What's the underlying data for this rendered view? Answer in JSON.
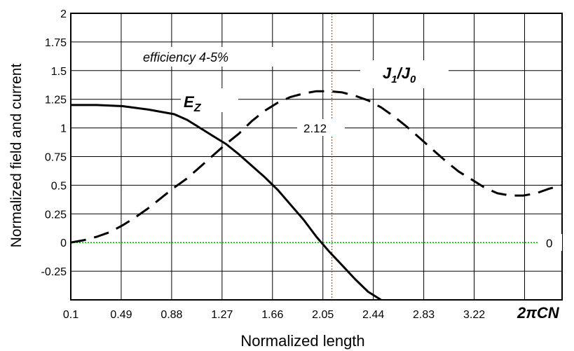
{
  "chart_data": {
    "type": "line",
    "xlabel": "Normalized length",
    "x_axis_symbol": "2πCN",
    "ylabel": "Normalized field and current",
    "xlim": [
      0.1,
      3.9
    ],
    "ylim": [
      -0.5,
      2.0
    ],
    "x_ticks": [
      0.1,
      0.49,
      0.88,
      1.27,
      1.66,
      2.05,
      2.44,
      2.83,
      3.22
    ],
    "x_tick_labels": [
      "0.1",
      "0.49",
      "0.88",
      "1.27",
      "1.66",
      "2.05",
      "2.44",
      "2.83",
      "3.22"
    ],
    "y_ticks": [
      -0.25,
      0,
      0.25,
      0.5,
      0.75,
      1,
      1.25,
      1.5,
      1.75,
      2
    ],
    "y_tick_labels": [
      "-0.25",
      "0",
      "0.25",
      "0.5",
      "0.75",
      "1",
      "1.25",
      "1.5",
      "1.75",
      "2"
    ],
    "grid": true,
    "series": [
      {
        "name": "E_Z",
        "style": "solid",
        "color": "#000000",
        "x": [
          0.1,
          0.3,
          0.5,
          0.7,
          0.9,
          1.0,
          1.1,
          1.2,
          1.3,
          1.4,
          1.5,
          1.6,
          1.7,
          1.8,
          1.9,
          2.0,
          2.1,
          2.2,
          2.3,
          2.4,
          2.5
        ],
        "y": [
          1.2,
          1.2,
          1.19,
          1.16,
          1.12,
          1.07,
          1.0,
          0.93,
          0.86,
          0.77,
          0.67,
          0.57,
          0.46,
          0.33,
          0.2,
          0.05,
          -0.08,
          -0.2,
          -0.32,
          -0.43,
          -0.5
        ]
      },
      {
        "name": "J_1/J_0",
        "style": "dashed",
        "color": "#000000",
        "x": [
          0.1,
          0.2,
          0.3,
          0.4,
          0.5,
          0.6,
          0.7,
          0.8,
          0.9,
          1.0,
          1.1,
          1.2,
          1.3,
          1.4,
          1.5,
          1.6,
          1.7,
          1.8,
          1.9,
          2.0,
          2.1,
          2.2,
          2.3,
          2.4,
          2.5,
          2.6,
          2.7,
          2.8,
          2.9,
          3.0,
          3.1,
          3.2,
          3.3,
          3.4,
          3.5,
          3.6,
          3.7,
          3.8,
          3.9
        ],
        "y": [
          0.0,
          0.02,
          0.05,
          0.09,
          0.15,
          0.22,
          0.3,
          0.39,
          0.48,
          0.56,
          0.66,
          0.76,
          0.86,
          0.95,
          1.06,
          1.15,
          1.22,
          1.27,
          1.3,
          1.32,
          1.32,
          1.31,
          1.28,
          1.24,
          1.18,
          1.1,
          1.01,
          0.91,
          0.81,
          0.71,
          0.62,
          0.55,
          0.48,
          0.43,
          0.41,
          0.41,
          0.43,
          0.47,
          0.5
        ]
      }
    ],
    "reference_lines": [
      {
        "orientation": "vertical",
        "value": 2.12,
        "label": "2.12",
        "color": "#ff0000",
        "style": "dotted"
      },
      {
        "orientation": "horizontal",
        "value": 0,
        "label": "0",
        "color": "#00aa00",
        "style": "dotted"
      }
    ],
    "annotations": {
      "efficiency": "efficiency  4-5%",
      "ez_main": "E",
      "ez_sub": "Z",
      "j_main_1": "J",
      "j_sub_1": "1",
      "j_slash": "/J",
      "j_sub_0": "0"
    }
  }
}
